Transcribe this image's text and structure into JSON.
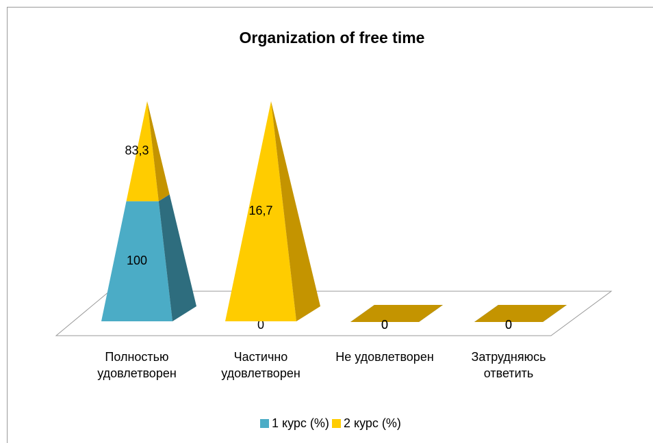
{
  "chart_data": {
    "type": "pyramid-stacked-100",
    "title": "Organization of free time",
    "categories": [
      "Полностью удовлетворен",
      "Частично удовлетворен",
      "Не удовлетворен",
      "Затрудняюсь ответить"
    ],
    "series": [
      {
        "name": "1 курс (%)",
        "color": "#4bacc6",
        "side_color": "#2e6d7e",
        "values": [
          100,
          0,
          0,
          0
        ],
        "value_labels": [
          "100",
          "0",
          "0",
          "0"
        ]
      },
      {
        "name": "2 курс (%)",
        "color": "#ffcc00",
        "side_color": "#c49400",
        "values": [
          83.3,
          16.7,
          0,
          0
        ],
        "value_labels": [
          "83,3",
          "16,7",
          "0",
          "0"
        ]
      }
    ],
    "legend": "bottom"
  }
}
